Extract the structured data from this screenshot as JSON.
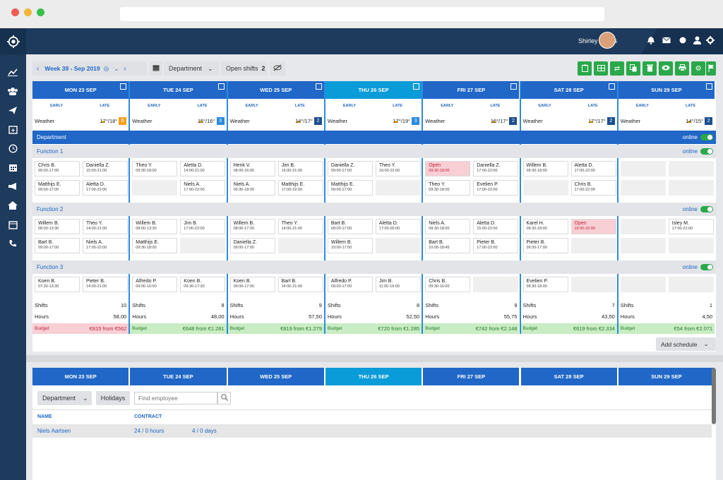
{
  "user": {
    "name": "Shirley Banks"
  },
  "toolbar": {
    "week": "Week 39 - Sep 2019",
    "department": "Department",
    "open_shifts_label": "Open shifts",
    "open_shifts_count": "2"
  },
  "days": [
    {
      "label": "MON 23 SEP",
      "weather": "17°/18°",
      "weather_num": "6",
      "num_color": "#f0a020",
      "today": false
    },
    {
      "label": "TUE 24 SEP",
      "weather": "15°/16°",
      "weather_num": "3",
      "num_color": "#2b8be0",
      "today": false
    },
    {
      "label": "WED 25 SEP",
      "weather": "14°/17°",
      "weather_num": "2",
      "num_color": "#1d4f8f",
      "today": false
    },
    {
      "label": "THU 26 SEP",
      "weather": "17°/19°",
      "weather_num": "3",
      "num_color": "#2b8be0",
      "today": true
    },
    {
      "label": "FRI 27 SEP",
      "weather": "16°/17°",
      "weather_num": "2",
      "num_color": "#1d4f8f",
      "today": false
    },
    {
      "label": "SAT 28 SEP",
      "weather": "17°/17°",
      "weather_num": "2",
      "num_color": "#1d4f8f",
      "today": false
    },
    {
      "label": "SUN 29 SEP",
      "weather": "14°/15°",
      "weather_num": "2",
      "num_color": "#1d4f8f",
      "today": false
    }
  ],
  "labels": {
    "early": "EARLY",
    "late": "LATE",
    "weather": "Weather",
    "department": "Department",
    "online": "online",
    "shifts": "Shifts",
    "hours": "Hours",
    "budget": "Budget",
    "add_schedule": "Add schedule"
  },
  "functions": [
    {
      "name": "Function 1",
      "days": [
        {
          "early": [
            {
              "n": "Chris B.",
              "t": "09:00-17:00"
            },
            {
              "n": "Matthijs E.",
              "t": "09:00-17:00"
            }
          ],
          "late": [
            {
              "n": "Daniella Z.",
              "t": "15:00-21:00"
            },
            {
              "n": "Aletta D.",
              "t": "17:00-22:00"
            }
          ]
        },
        {
          "early": [
            {
              "n": "Theo Y.",
              "t": "09:30-18:00"
            }
          ],
          "late": [
            {
              "n": "Aletta D.",
              "t": "14:00-21:00"
            },
            {
              "n": "Niels A.",
              "t": "17:00-22:00"
            }
          ]
        },
        {
          "early": [
            {
              "n": "Henk V.",
              "t": "08:00-16:00"
            },
            {
              "n": "Niels A.",
              "t": "09:30-18:00"
            }
          ],
          "late": [
            {
              "n": "Jim B.",
              "t": "15:00-21:00"
            },
            {
              "n": "Matthijs E.",
              "t": "17:00-22:00"
            }
          ]
        },
        {
          "early": [
            {
              "n": "Daniella Z.",
              "t": "09:00-17:00"
            },
            {
              "n": "Matthijs E.",
              "t": "09:00-17:00"
            }
          ],
          "late": [
            {
              "n": "Theo Y.",
              "t": "16:00-22:00"
            }
          ]
        },
        {
          "early": [
            {
              "n": "Open",
              "t": "09:30-18:00",
              "open": true
            },
            {
              "n": "Theo Y.",
              "t": "09:30-18:00"
            }
          ],
          "late": [
            {
              "n": "Daniella Z.",
              "t": "17:00-22:00"
            },
            {
              "n": "Evelien P.",
              "t": "17:00-22:00"
            }
          ]
        },
        {
          "early": [
            {
              "n": "Willem B.",
              "t": "09:30-18:00"
            }
          ],
          "late": [
            {
              "n": "Aletta D.",
              "t": "17:00-22:00"
            },
            {
              "n": "Chris B.",
              "t": "17:00-22:00"
            }
          ]
        },
        {
          "early": [],
          "late": []
        }
      ]
    },
    {
      "name": "Function 2",
      "days": [
        {
          "early": [
            {
              "n": "Willem B.",
              "t": "08:00-13:30"
            },
            {
              "n": "Bart B.",
              "t": "09:00-17:00"
            }
          ],
          "late": [
            {
              "n": "Theo Y.",
              "t": "14:00-21:00"
            },
            {
              "n": "Niels A.",
              "t": "17:00-22:00"
            }
          ]
        },
        {
          "early": [
            {
              "n": "Willem B.",
              "t": "08:00-13:30"
            },
            {
              "n": "Matthijs E.",
              "t": "09:30-18:00"
            }
          ],
          "late": [
            {
              "n": "Jim B.",
              "t": "17:00-22:00"
            }
          ]
        },
        {
          "early": [
            {
              "n": "Willem B.",
              "t": "08:00-17:00"
            },
            {
              "n": "Daniella Z.",
              "t": "09:00-17:00"
            }
          ],
          "late": [
            {
              "n": "Theo Y.",
              "t": "14:00-21:00"
            }
          ]
        },
        {
          "early": [
            {
              "n": "Bart B.",
              "t": "09:00-17:00"
            },
            {
              "n": "Willem B.",
              "t": "10:00-17:00"
            }
          ],
          "late": [
            {
              "n": "Aletta D.",
              "t": "17:00-00:00"
            }
          ]
        },
        {
          "early": [
            {
              "n": "Niels A.",
              "t": "09:30-18:00"
            },
            {
              "n": "Bart B.",
              "t": "10:00-18:45"
            }
          ],
          "late": [
            {
              "n": "Aletta D.",
              "t": "15:00-22:00"
            },
            {
              "n": "Pieter B.",
              "t": "17:00-22:00"
            }
          ]
        },
        {
          "early": [
            {
              "n": "Karel H.",
              "t": "09:30-18:00"
            },
            {
              "n": "Pieter B.",
              "t": "09:30-17:00"
            }
          ],
          "late": [
            {
              "n": "Open",
              "t": "16:00-22:00",
              "open": true
            }
          ]
        },
        {
          "early": [],
          "late": [
            {
              "n": "Isley M.",
              "t": "17:00-22:00"
            }
          ]
        }
      ]
    },
    {
      "name": "Function 3",
      "days": [
        {
          "early": [
            {
              "n": "Koen B.",
              "t": "07:30-13:30"
            }
          ],
          "late": [
            {
              "n": "Pieter B.",
              "t": "14:00-21:00"
            }
          ]
        },
        {
          "early": [
            {
              "n": "Alfredo P.",
              "t": "09:00-16:00"
            }
          ],
          "late": [
            {
              "n": "Koen B.",
              "t": "09:30-17:30"
            }
          ]
        },
        {
          "early": [
            {
              "n": "Koen B.",
              "t": "09:00-17:00"
            }
          ],
          "late": [
            {
              "n": "Bart B.",
              "t": "14:00-21:00"
            }
          ]
        },
        {
          "early": [
            {
              "n": "Alfredo P.",
              "t": "09:00-17:00"
            }
          ],
          "late": [
            {
              "n": "Jim B.",
              "t": "11:00-19:00"
            }
          ]
        },
        {
          "early": [
            {
              "n": "Chris B.",
              "t": "09:30-16:00"
            }
          ],
          "late": []
        },
        {
          "early": [
            {
              "n": "Evelien P.",
              "t": "09:30-18:00"
            }
          ],
          "late": []
        },
        {
          "early": [],
          "late": []
        }
      ]
    }
  ],
  "stats": [
    {
      "shifts": "10",
      "hours": "58,00",
      "budget": "€815 from €562",
      "over": true
    },
    {
      "shifts": "8",
      "hours": "48,00",
      "budget": "€648 from €1.281",
      "over": false
    },
    {
      "shifts": "9",
      "hours": "57,50",
      "budget": "€819 from €1.279",
      "over": false
    },
    {
      "shifts": "8",
      "hours": "52,50",
      "budget": "€720 from €1.285",
      "over": false
    },
    {
      "shifts": "9",
      "hours": "55,75",
      "budget": "€742 from €2.148",
      "over": false
    },
    {
      "shifts": "7",
      "hours": "43,50",
      "budget": "€619 from €2.334",
      "over": false
    },
    {
      "shifts": "1",
      "hours": "4,50",
      "budget": "€54 from €2.071",
      "over": false
    }
  ],
  "bottom": {
    "department": "Department",
    "holidays": "Holidays",
    "search_placeholder": "Find employee",
    "name_header": "NAME",
    "contract_header": "CONTRACT",
    "row": {
      "name": "Niels Aartsen",
      "hours": "24 / 0 hours",
      "days": "4 / 0 days"
    }
  }
}
